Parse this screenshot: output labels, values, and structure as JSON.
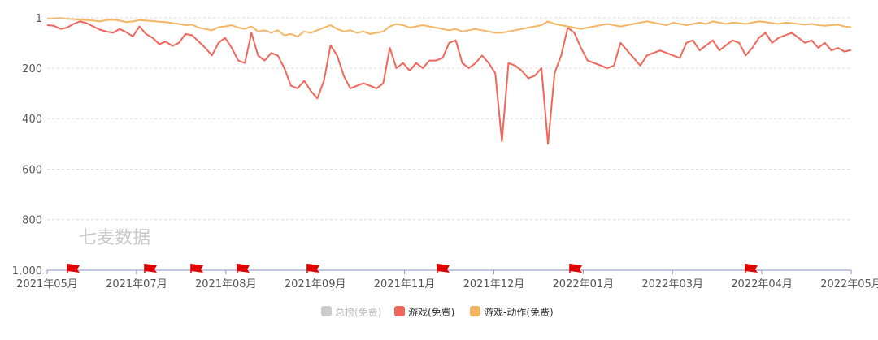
{
  "chart_data": {
    "type": "line",
    "y_axis": {
      "inverted": true,
      "range": [
        1,
        1000
      ],
      "ticks": [
        "1",
        "200",
        "400",
        "600",
        "800",
        "1,000"
      ],
      "grid": true
    },
    "x_axis": {
      "ticks": [
        "2021年05月",
        "2021年07月",
        "2021年08月",
        "2021年09月",
        "2021年11月",
        "2021年12月",
        "2022年01月",
        "2022年03月",
        "2022年04月",
        "2022年05月"
      ]
    },
    "legend_position": "bottom",
    "legend": [
      {
        "name": "总榜(免费)",
        "color": "#cccccc",
        "active": false
      },
      {
        "name": "游戏(免费)",
        "color": "#f0665a",
        "active": true
      },
      {
        "name": "游戏-动作(免费)",
        "color": "#f5b562",
        "active": true
      }
    ],
    "series": [
      {
        "name": "游戏(免费)",
        "color": "#f0665a",
        "ranks": [
          30,
          32,
          45,
          40,
          25,
          15,
          22,
          35,
          48,
          55,
          60,
          45,
          58,
          75,
          35,
          65,
          80,
          105,
          95,
          112,
          100,
          65,
          70,
          95,
          120,
          150,
          100,
          80,
          120,
          170,
          180,
          60,
          150,
          170,
          140,
          150,
          200,
          270,
          280,
          250,
          290,
          320,
          250,
          110,
          150,
          230,
          280,
          270,
          260,
          270,
          280,
          260,
          120,
          200,
          180,
          210,
          180,
          200,
          170,
          170,
          160,
          100,
          90,
          180,
          200,
          180,
          150,
          180,
          220,
          490,
          180,
          190,
          210,
          240,
          230,
          200,
          500,
          220,
          150,
          40,
          60,
          120,
          170,
          180,
          190,
          200,
          190,
          100,
          130,
          160,
          190,
          150,
          140,
          130,
          140,
          150,
          160,
          100,
          90,
          130,
          110,
          90,
          130,
          110,
          90,
          100,
          150,
          120,
          80,
          60,
          100,
          80,
          70,
          60,
          80,
          100,
          90,
          120,
          100,
          130,
          120,
          135,
          128
        ]
      },
      {
        "name": "游戏-动作(免费)",
        "color": "#f5b562",
        "ranks": [
          5,
          3,
          2,
          5,
          6,
          8,
          10,
          12,
          15,
          10,
          8,
          12,
          18,
          15,
          10,
          12,
          14,
          16,
          18,
          22,
          25,
          30,
          28,
          40,
          45,
          50,
          38,
          35,
          30,
          40,
          45,
          35,
          55,
          50,
          60,
          50,
          70,
          65,
          75,
          55,
          60,
          50,
          40,
          30,
          45,
          55,
          50,
          60,
          55,
          65,
          60,
          55,
          35,
          25,
          30,
          40,
          35,
          30,
          35,
          40,
          45,
          50,
          45,
          55,
          50,
          45,
          50,
          55,
          60,
          60,
          55,
          50,
          45,
          40,
          35,
          30,
          15,
          25,
          30,
          35,
          40,
          45,
          40,
          35,
          30,
          25,
          30,
          35,
          30,
          25,
          20,
          15,
          20,
          25,
          30,
          20,
          25,
          30,
          25,
          20,
          25,
          15,
          20,
          25,
          20,
          22,
          25,
          20,
          15,
          18,
          22,
          25,
          20,
          22,
          25,
          28,
          25,
          30,
          32,
          30,
          28,
          35,
          38
        ]
      }
    ],
    "watermark": "七麦数据"
  }
}
